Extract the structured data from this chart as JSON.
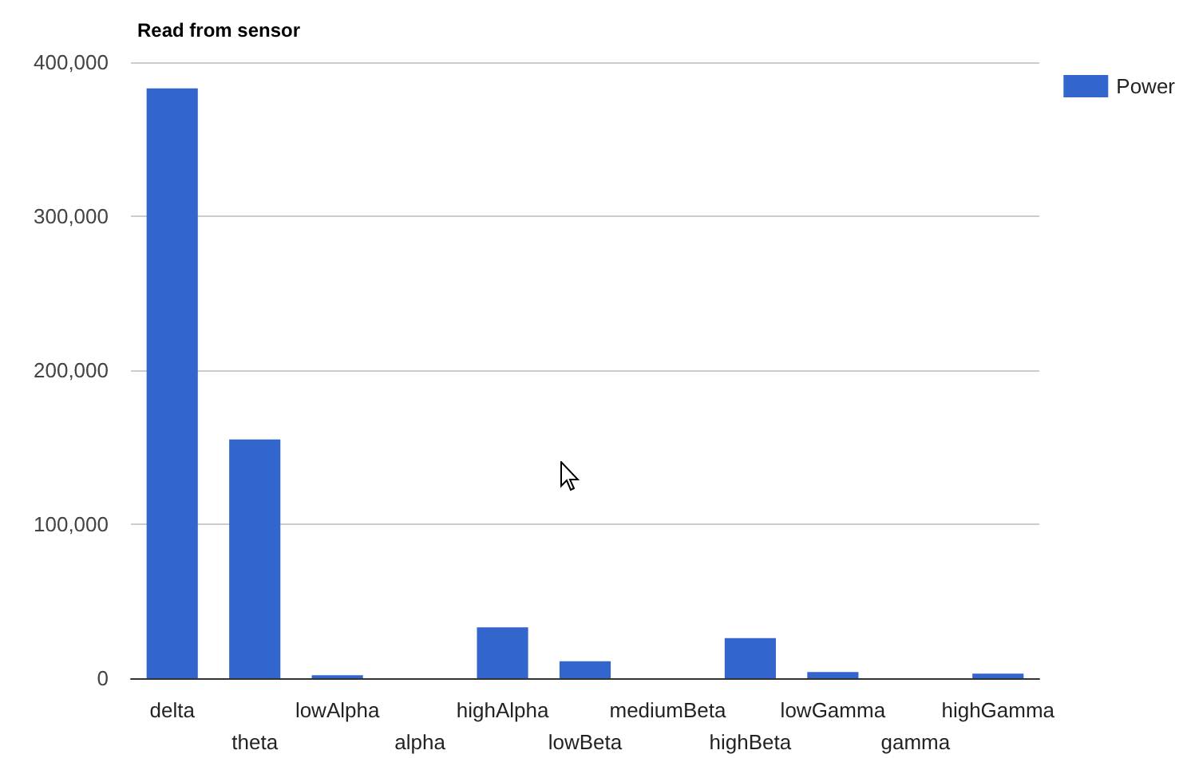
{
  "chart_data": {
    "type": "bar",
    "title": "Read from sensor",
    "categories": [
      "delta",
      "theta",
      "lowAlpha",
      "alpha",
      "highAlpha",
      "lowBeta",
      "mediumBeta",
      "highBeta",
      "lowGamma",
      "gamma",
      "highGamma"
    ],
    "series": [
      {
        "name": "Power",
        "color": "#3366cc",
        "values": [
          383000,
          155000,
          2000,
          0,
          33000,
          11000,
          0,
          26000,
          4000,
          0,
          3000
        ]
      }
    ],
    "ylim": [
      0,
      400000
    ],
    "yticks": [
      0,
      {
        "value": 100000,
        "label": "100,000"
      },
      {
        "value": 200000,
        "label": "200,000"
      },
      {
        "value": 300000,
        "label": "300,000"
      },
      {
        "value": 400000,
        "label": "400,000"
      }
    ],
    "grid": "y",
    "legend": "right"
  }
}
